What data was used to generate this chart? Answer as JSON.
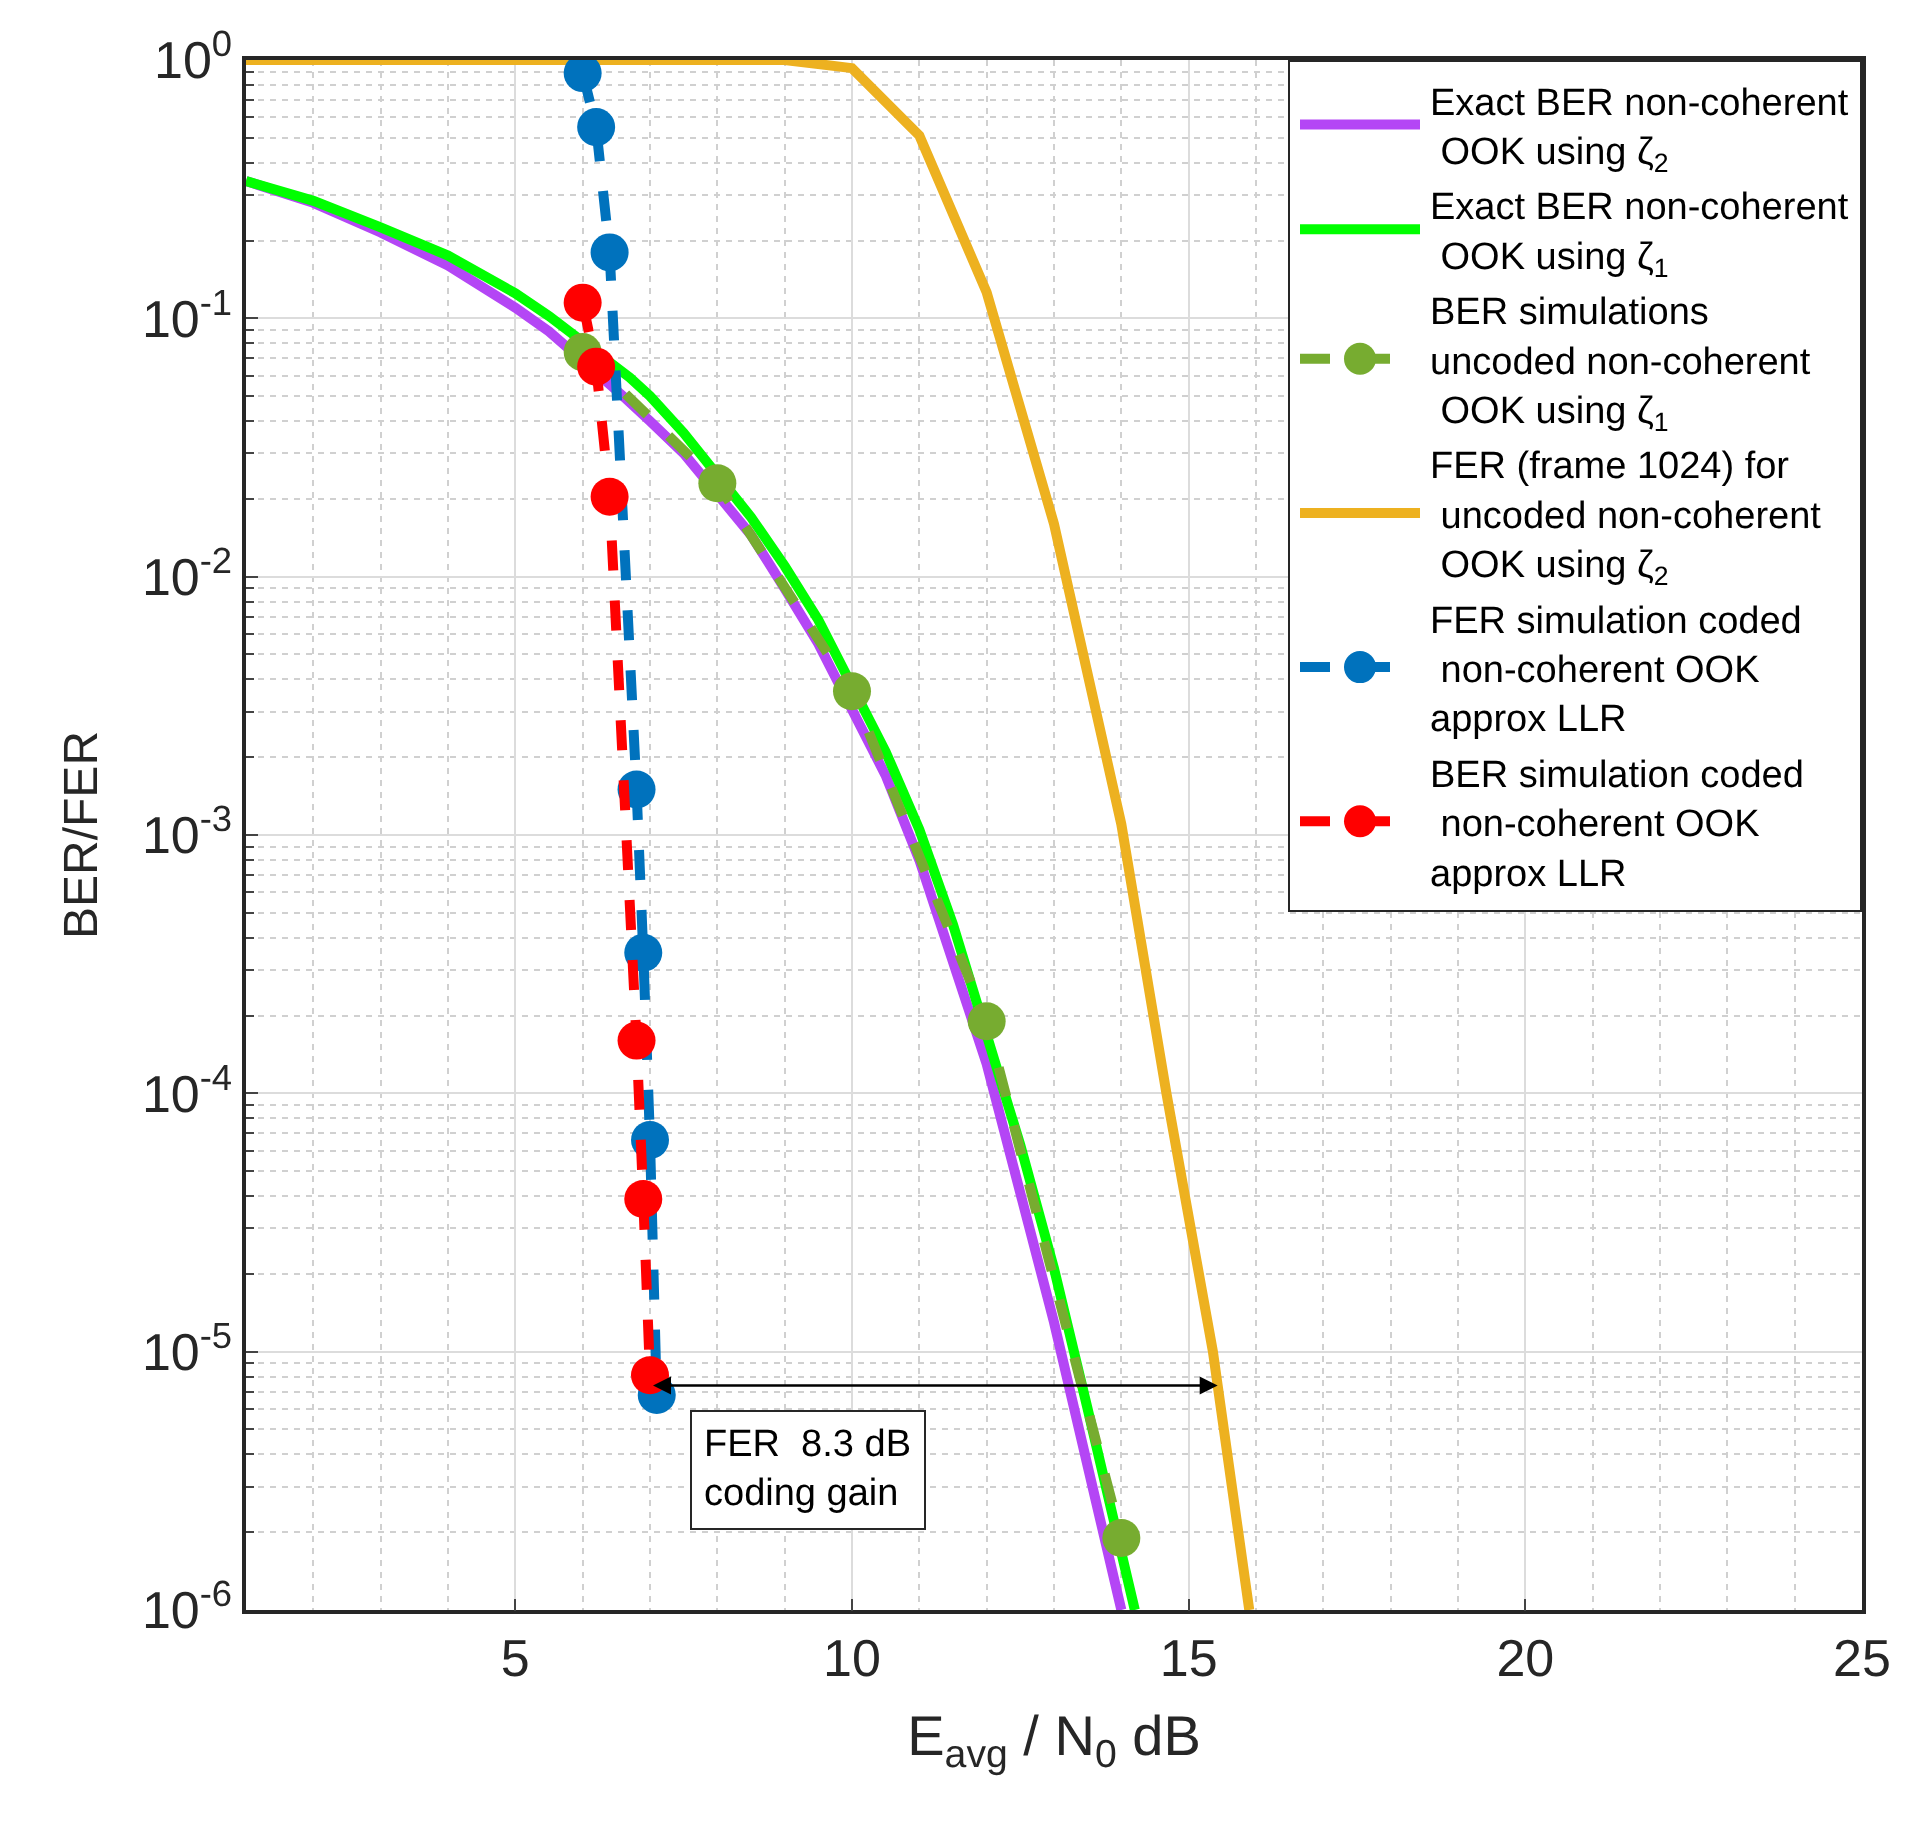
{
  "chart_data": {
    "type": "line",
    "xlabel": "E$_{avg}$ / N$_{0}$ dB",
    "ylabel": "BER/FER",
    "log": "y",
    "grid": true,
    "legend": "top right",
    "xlim": [
      1,
      25
    ],
    "xticks": [
      5,
      10,
      15,
      20,
      25
    ],
    "ylim": [
      1e-06,
      1
    ],
    "yticks": [
      {
        "value": 1e-06,
        "label": "10$^{-6}$"
      },
      {
        "value": 1e-05,
        "label": "10$^{-5}$"
      },
      {
        "value": 0.0001,
        "label": "10$^{-4}$"
      },
      {
        "value": 0.001,
        "label": "10$^{-3}$"
      },
      {
        "value": 0.01,
        "label": "10$^{-2}$"
      },
      {
        "value": 0.1,
        "label": "10$^{-1}$"
      },
      {
        "value": 1,
        "label": "10$^{0}$"
      }
    ],
    "series": [
      {
        "name": "Exact BER non-coherent\n OOK using ζ$_{2}$",
        "color": "#b446f5",
        "marker": "none",
        "line_style": "solid",
        "x": [
          1,
          2,
          3,
          4,
          5,
          5.5,
          6.6,
          7,
          7.5,
          8.5,
          9,
          9.5,
          10.5,
          11,
          12,
          13,
          14
        ],
        "values": [
          0.34,
          0.28,
          0.215,
          0.16,
          0.11,
          0.089,
          0.05,
          0.04,
          0.03,
          0.0145,
          0.009,
          0.0055,
          0.0017,
          0.0008,
          0.00013,
          1.3e-05,
          1e-06
        ]
      },
      {
        "name": "Exact BER non-coherent\n OOK using ζ$_{1}$",
        "color": "#00ff00",
        "marker": "none",
        "line_style": "solid",
        "x": [
          1,
          2,
          3,
          4,
          5,
          5.5,
          6.7,
          7,
          7.5,
          8.5,
          9,
          9.5,
          10.5,
          11,
          11.5,
          12.5,
          13,
          13.5,
          14.2
        ],
        "values": [
          0.34,
          0.285,
          0.225,
          0.175,
          0.125,
          0.102,
          0.059,
          0.05,
          0.036,
          0.017,
          0.011,
          0.0068,
          0.0021,
          0.00105,
          0.00045,
          6.3e-05,
          2.1e-05,
          6e-06,
          1e-06
        ]
      },
      {
        "name": "BER simulations\nuncoded non-coherent\n OOK using ζ$_{1}$",
        "color": "#77ac30",
        "marker": "circle",
        "line_style": "dashed",
        "x": [
          6,
          8,
          10,
          12,
          14
        ],
        "values": [
          0.074,
          0.023,
          0.0036,
          0.00019,
          1.9e-06
        ]
      },
      {
        "name": "FER (frame 1024) for\n uncoded non-coherent\n OOK using ζ$_{2}$",
        "color": "#edb120",
        "marker": "none",
        "line_style": "solid",
        "x": [
          1,
          2,
          3,
          4,
          5,
          7,
          8,
          9,
          10,
          11,
          12,
          13,
          14,
          14.67,
          15.36,
          15.9
        ],
        "values": [
          1,
          1,
          1,
          1,
          1,
          1,
          1,
          1,
          0.93,
          0.51,
          0.126,
          0.016,
          0.0011,
          0.0001,
          1e-05,
          1e-06
        ]
      },
      {
        "name": "FER simulation coded\n non-coherent OOK\napprox LLR",
        "color": "#0072bd",
        "marker": "circle",
        "line_style": "dashed",
        "x": [
          6.0,
          6.2,
          6.4,
          6.8,
          6.9,
          7.0,
          7.1
        ],
        "values": [
          0.89,
          0.55,
          0.18,
          0.0015,
          0.00035,
          6.6e-05,
          6.8e-06
        ]
      },
      {
        "name": "BER simulation coded\n non-coherent OOK\napprox LLR",
        "color": "#ff0000",
        "marker": "circle",
        "line_style": "dashed",
        "x": [
          6.0,
          6.2,
          6.4,
          6.8,
          6.9,
          7.0
        ],
        "values": [
          0.115,
          0.065,
          0.0204,
          0.00016,
          3.9e-05,
          8.1e-06
        ]
      }
    ],
    "annotations": [
      {
        "text": "FER  8.3 dB\ncoding gain",
        "x": 7.0,
        "y": 7.4e-06
      }
    ]
  }
}
